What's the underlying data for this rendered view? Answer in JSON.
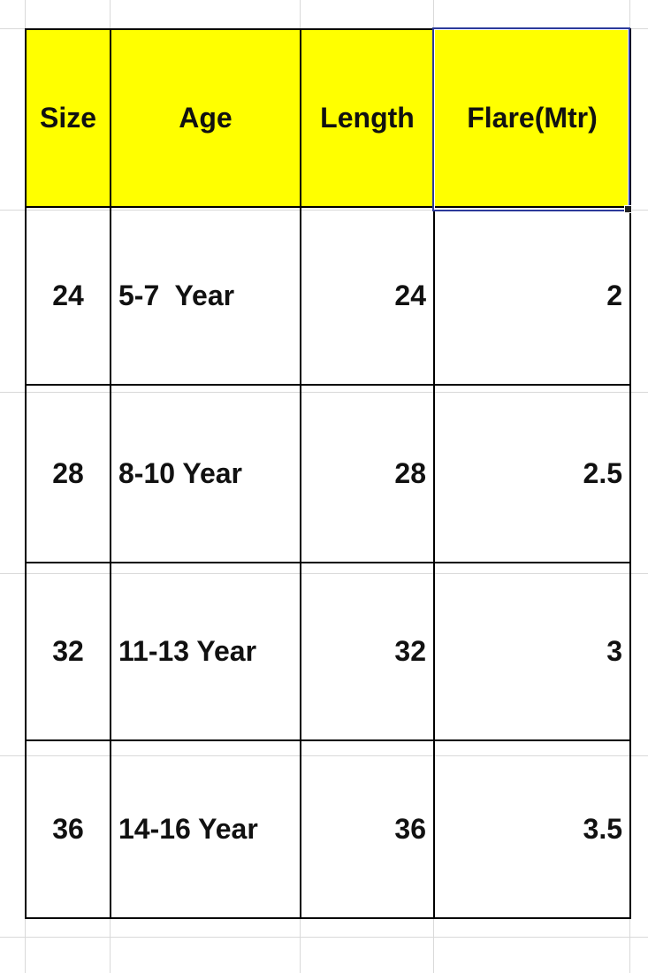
{
  "sheet": {
    "headers": [
      "Size",
      "Age",
      "Length",
      "Flare(Mtr)"
    ],
    "rows": [
      [
        "24",
        "5-7  Year",
        "24",
        "2"
      ],
      [
        "28",
        "8-10 Year",
        "28",
        "2.5"
      ],
      [
        "32",
        "11-13 Year",
        "32",
        "3"
      ],
      [
        "36",
        "14-16 Year",
        "36",
        "3.5"
      ]
    ],
    "header_fill": "#ffff00",
    "selected_cell": "Flare(Mtr)",
    "selection_color": "#2b3a9a"
  }
}
